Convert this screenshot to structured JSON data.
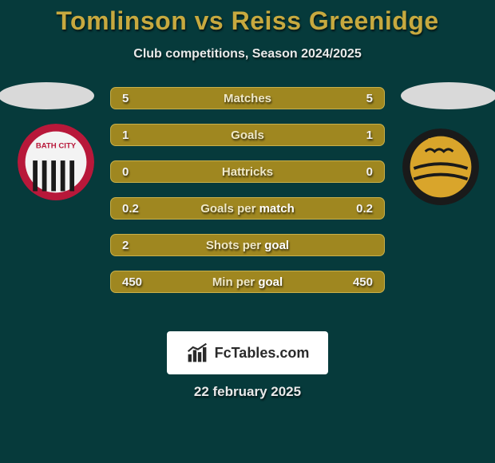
{
  "colors": {
    "background": "#063a3b",
    "title": "#c7a93f",
    "subtitle": "#e9e9e9",
    "row_bg": "#9f8720",
    "row_border": "#c9b04a",
    "row_value": "#f2f2f2",
    "row_label_half1": "#efe8c8",
    "row_label_half2": "#ffffff",
    "ellipse": "#d9d9d9",
    "brand_bg": "#ffffff",
    "brand_text": "#2a2a2a",
    "date_text": "#e9e9e9",
    "crest_left_ring": "#b8183a",
    "crest_left_body": "#f3f3f3",
    "crest_left_stripe": "#1a1a1a",
    "crest_right_outer": "#1a1a1a",
    "crest_right_inner": "#d9a52b"
  },
  "title": "Tomlinson vs Reiss Greenidge",
  "subtitle": "Club competitions, Season 2024/2025",
  "rows": [
    {
      "left": "5",
      "label": "Matches",
      "right": "5"
    },
    {
      "left": "1",
      "label": "Goals",
      "right": "1"
    },
    {
      "left": "0",
      "label": "Hattricks",
      "right": "0"
    },
    {
      "left": "0.2",
      "label": "Goals per match",
      "right": "0.2"
    },
    {
      "left": "2",
      "label": "Shots per goal",
      "right": ""
    },
    {
      "left": "450",
      "label": "Min per goal",
      "right": "450"
    }
  ],
  "brand": "FcTables.com",
  "date": "22 february 2025",
  "crest_left_name": "bath-city-crest",
  "crest_right_name": "mufc-crest",
  "fonts": {
    "title_size": 32,
    "subtitle_size": 16,
    "row_size": 15,
    "brand_size": 18,
    "date_size": 17
  }
}
